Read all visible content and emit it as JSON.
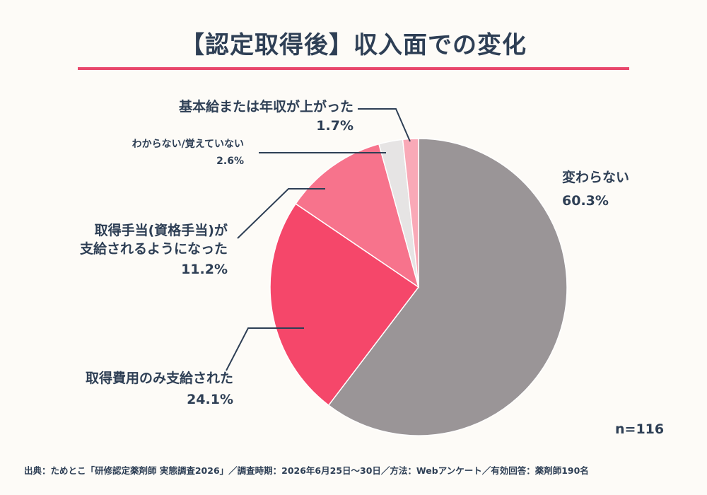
{
  "title": "【認定取得後】収入面での変化",
  "sample_size": "n=116",
  "source": "出典：ためとこ「研修認定薬剤師 実態調査2026」／調査時期：2026年6月25日〜30日／方法：Webアンケート／有効回答：薬剤師190名",
  "colors": {
    "accent": "#e8476b",
    "text": "#2e3f55",
    "leader": "#2e3f55"
  },
  "chart_data": {
    "type": "pie",
    "start": "12 o'clock, clockwise",
    "slices": [
      {
        "label": [
          "変わらない"
        ],
        "value": 60.3,
        "value_label": "60.3%",
        "color": "#9a9597"
      },
      {
        "label": [
          "取得費用のみ支給された"
        ],
        "value": 24.1,
        "value_label": "24.1%",
        "color": "#f5476a"
      },
      {
        "label": [
          "取得手当(資格手当)が",
          "支給されるようになった"
        ],
        "value": 11.2,
        "value_label": "11.2%",
        "color": "#f7738c"
      },
      {
        "label": [
          "わからない/覚えていない"
        ],
        "value": 2.6,
        "value_label": "2.6%",
        "color": "#e6e4e4"
      },
      {
        "label": [
          "基本給または年収が上がった"
        ],
        "value": 1.7,
        "value_label": "1.7%",
        "color": "#f9a9b7"
      }
    ]
  }
}
